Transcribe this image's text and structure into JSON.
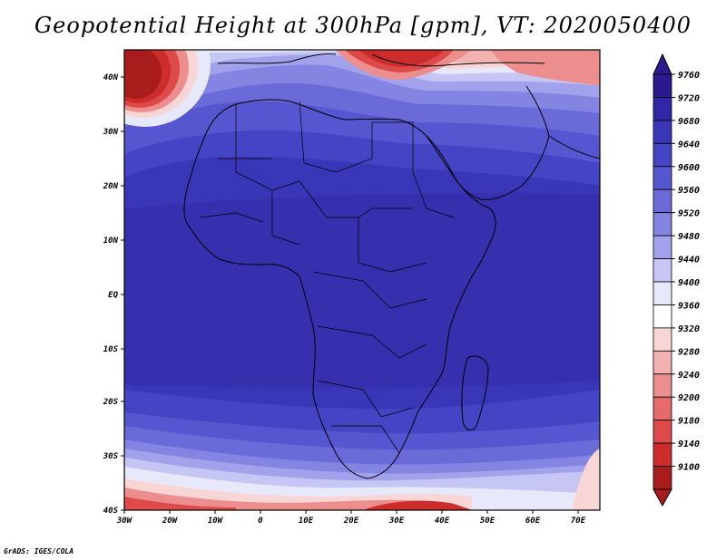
{
  "title": "Geopotential Height at 300hPa [gpm], VT: 2020050400",
  "credit": "GrADS: IGES/COLA",
  "map": {
    "lon_labels": [
      "30W",
      "20W",
      "10W",
      "0",
      "10E",
      "20E",
      "30E",
      "40E",
      "50E",
      "60E",
      "70E"
    ],
    "lat_labels": [
      "40N",
      "30N",
      "20N",
      "10N",
      "EQ",
      "10S",
      "20S",
      "30S",
      "40S"
    ]
  },
  "colorbar": {
    "levels": [
      "9760",
      "9720",
      "9680",
      "9640",
      "9600",
      "9560",
      "9520",
      "9480",
      "9440",
      "9400",
      "9360",
      "9320",
      "9280",
      "9240",
      "9200",
      "9180",
      "9140",
      "9100"
    ],
    "colors": [
      "#2b1a8f",
      "#3127a6",
      "#3a36b8",
      "#4444c4",
      "#5656d0",
      "#6a6ad8",
      "#8484e2",
      "#a2a2ec",
      "#c6c6f4",
      "#e8e8fb",
      "#ffffff",
      "#f8d6d6",
      "#f2b2b2",
      "#ec8e8e",
      "#e66a6a",
      "#de4a4a",
      "#cc2c2c",
      "#a91c1c"
    ]
  }
}
